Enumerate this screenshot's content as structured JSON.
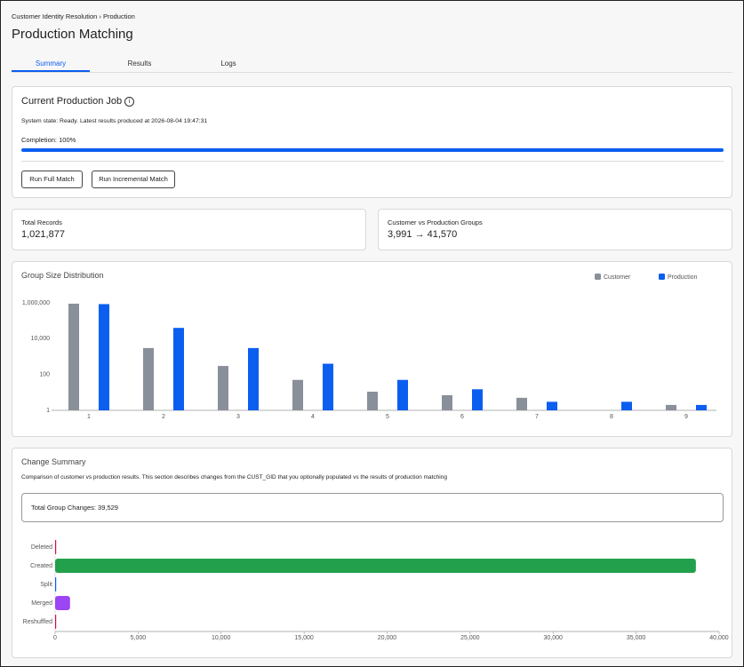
{
  "breadcrumb": [
    "Customer Identity Resolution",
    "Production"
  ],
  "title": "Production Matching",
  "tabs": [
    "Summary",
    "Results",
    "Logs"
  ],
  "active_tab": 0,
  "job": {
    "title": "Current Production Job",
    "status": "System state: Ready. Latest results produced at 2026-08-04 19:47:31",
    "progress": {
      "label": "Completion:",
      "value": 100,
      "value_label": "100%",
      "color": "#0b5ef0"
    },
    "buttons": [
      "Run Full Match",
      "Run Incremental Match"
    ]
  },
  "stats": [
    {
      "label": "Total Records",
      "value": "1,021,877"
    },
    {
      "label": "Customer vs Production Groups",
      "value": "3,991 → 41,570"
    }
  ],
  "chart_data": [
    {
      "type": "bar",
      "title": "Group Size Distribution",
      "categories": [
        "1",
        "2",
        "3",
        "4",
        "5",
        "6",
        "7",
        "8",
        "9"
      ],
      "series": [
        {
          "name": "Customer",
          "color": "#8a9099",
          "values": [
            900000,
            3000,
            300,
            50,
            11,
            7,
            5,
            null,
            2
          ]
        },
        {
          "name": "Production",
          "color": "#0b5ef0",
          "values": [
            850000,
            40000,
            3000,
            400,
            50,
            15,
            3,
            3,
            2
          ]
        }
      ],
      "log_scale": true,
      "ylim": [
        1,
        1000000
      ],
      "yticks": [
        1,
        100,
        {
          "value": 10000,
          "label": "10,000"
        },
        {
          "value": 1000000,
          "label": "1,000,000"
        }
      ],
      "legend": "top-right"
    },
    {
      "type": "hbar",
      "title": "Change Summary",
      "subtitle": "Comparison of customer vs production results. This section describes changes from the CUST_GID that you optionally populated vs the results of production matching",
      "total": "Total Group Changes: 39,529",
      "categories": [
        "Deleted",
        "Created",
        "Split",
        "Merged",
        "Reshuffled"
      ],
      "values": [
        10,
        38600,
        10,
        900,
        9
      ],
      "colors": [
        "#d0104c",
        "#22a04b",
        "#0b5ef0",
        "#9b45f5",
        "#d0104c"
      ],
      "xlim": [
        0,
        40000
      ],
      "xticks": [
        0,
        {
          "value": 5000,
          "label": "5,000"
        },
        {
          "value": 10000,
          "label": "10,000"
        },
        {
          "value": 15000,
          "label": "15,000"
        },
        {
          "value": 20000,
          "label": "20,000"
        },
        {
          "value": 25000,
          "label": "25,000"
        },
        {
          "value": 30000,
          "label": "30,000"
        },
        {
          "value": 35000,
          "label": "35,000"
        },
        {
          "value": 40000,
          "label": "40,000"
        }
      ]
    }
  ]
}
